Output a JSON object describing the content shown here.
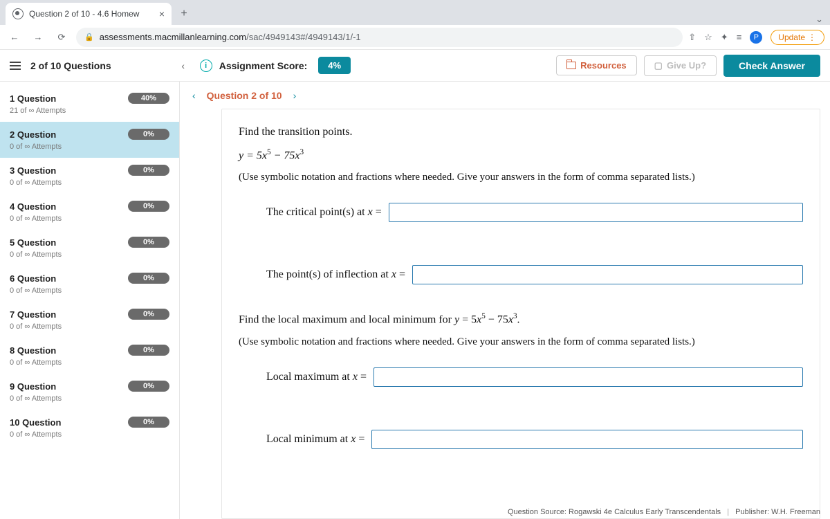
{
  "browser": {
    "tab_title": "Question 2 of 10 - 4.6 Homew",
    "url_host": "assessments.macmillanlearning.com",
    "url_path": "/sac/4949143#/4949143/1/-1",
    "update_label": "Update",
    "profile_initial": "P"
  },
  "header": {
    "progress": "2 of 10 Questions",
    "assignment_score_label": "Assignment Score:",
    "assignment_score_value": "4%",
    "resources_label": "Resources",
    "giveup_label": "Give Up?",
    "check_label": "Check Answer"
  },
  "crumb": {
    "label": "Question 2 of 10"
  },
  "sidebar": {
    "items": [
      {
        "title": "1 Question",
        "pct": "40%",
        "sub": "21 of ∞ Attempts",
        "active": false
      },
      {
        "title": "2 Question",
        "pct": "0%",
        "sub": "0 of ∞ Attempts",
        "active": true
      },
      {
        "title": "3 Question",
        "pct": "0%",
        "sub": "0 of ∞ Attempts",
        "active": false
      },
      {
        "title": "4 Question",
        "pct": "0%",
        "sub": "0 of ∞ Attempts",
        "active": false
      },
      {
        "title": "5 Question",
        "pct": "0%",
        "sub": "0 of ∞ Attempts",
        "active": false
      },
      {
        "title": "6 Question",
        "pct": "0%",
        "sub": "0 of ∞ Attempts",
        "active": false
      },
      {
        "title": "7 Question",
        "pct": "0%",
        "sub": "0 of ∞ Attempts",
        "active": false
      },
      {
        "title": "8 Question",
        "pct": "0%",
        "sub": "0 of ∞ Attempts",
        "active": false
      },
      {
        "title": "9 Question",
        "pct": "0%",
        "sub": "0 of ∞ Attempts",
        "active": false
      },
      {
        "title": "10 Question",
        "pct": "0%",
        "sub": "0 of ∞ Attempts",
        "active": false
      }
    ]
  },
  "question": {
    "prompt1": "Find the transition points.",
    "equation_html": "y = 5x⁵ − 75x³",
    "note": "(Use symbolic notation and fractions where needed. Give your answers in the form of comma separated lists.)",
    "field1_label": "The critical point(s) at x =",
    "field2_label": "The point(s) of inflection at x =",
    "prompt2": "Find the local maximum and local minimum for y = 5x⁵ − 75x³.",
    "field3_label": "Local maximum at x =",
    "field4_label": "Local minimum at x ="
  },
  "footer": {
    "source": "Question Source: Rogawski 4e Calculus Early Transcendentals",
    "publisher": "Publisher: W.H. Freeman"
  }
}
